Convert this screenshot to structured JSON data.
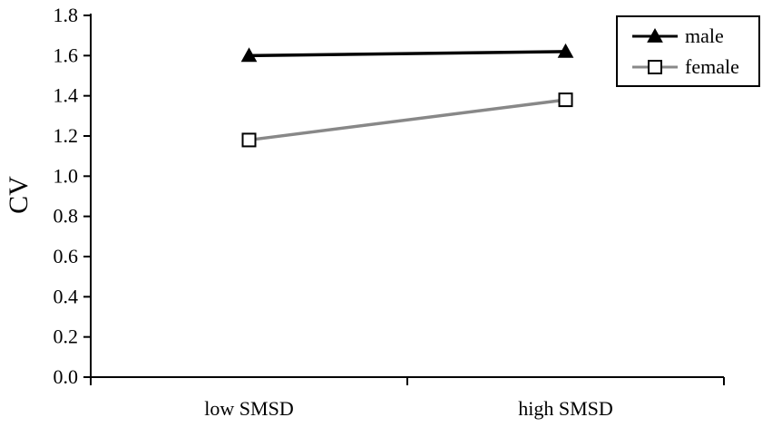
{
  "chart_data": {
    "type": "line",
    "categories": [
      "low SMSD",
      "high SMSD"
    ],
    "series": [
      {
        "name": "male",
        "values": [
          1.6,
          1.62
        ],
        "color": "#000000",
        "marker": "triangle"
      },
      {
        "name": "female",
        "values": [
          1.18,
          1.38
        ],
        "color": "#888888",
        "marker": "square"
      }
    ],
    "ylabel": "CV",
    "xlabel": "",
    "ylim": [
      0,
      1.8
    ],
    "yticks": [
      0.0,
      0.2,
      0.4,
      0.6,
      0.8,
      1.0,
      1.2,
      1.4,
      1.6,
      1.8
    ],
    "ytick_labels": [
      "0.0",
      "0.2",
      "0.4",
      "0.6",
      "0.8",
      "1.0",
      "1.2",
      "1.4",
      "1.6",
      "1.8"
    ],
    "legend_position": "top-right",
    "grid": false
  }
}
